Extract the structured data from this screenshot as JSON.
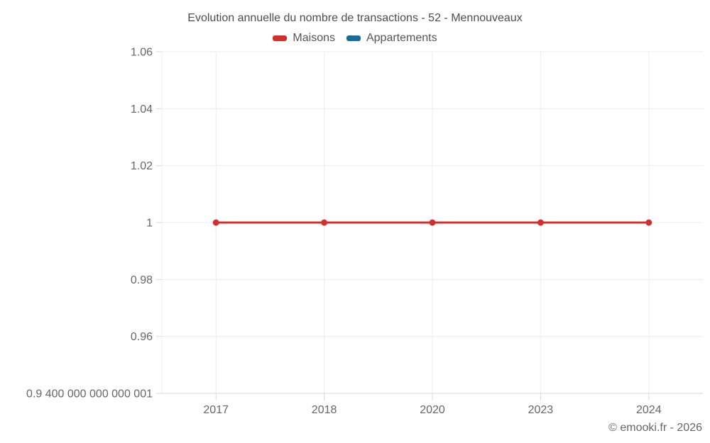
{
  "footer": {
    "copyright": "© emooki.fr - 2026"
  },
  "chart_data": {
    "type": "line",
    "title": "Evolution annuelle du nombre de transactions - 52 - Mennouveaux",
    "xlabel": "",
    "ylabel": "",
    "categories": [
      "2017",
      "2018",
      "2020",
      "2023",
      "2024"
    ],
    "series": [
      {
        "name": "Maisons",
        "color": "#d32f2f",
        "values": [
          1,
          1,
          1,
          1,
          1
        ]
      },
      {
        "name": "Appartements",
        "color": "#1a6d9b",
        "values": []
      }
    ],
    "ylim": [
      0.94,
      1.06
    ],
    "y_ticks": [
      {
        "value": 1.06,
        "label": "1.06"
      },
      {
        "value": 1.04,
        "label": "1.04"
      },
      {
        "value": 1.02,
        "label": "1.02"
      },
      {
        "value": 1,
        "label": "1"
      },
      {
        "value": 0.98,
        "label": "0.98"
      },
      {
        "value": 0.96,
        "label": "0.96"
      },
      {
        "value": 0.94,
        "label": "0.9 400 000 000 000 001"
      }
    ],
    "grid": true,
    "legend_position": "top",
    "grid_color": "#ececec",
    "axis_color": "#d9d9d9",
    "tick_label_color": "#666666",
    "marker_radius": 4.5,
    "line_width": 3
  }
}
